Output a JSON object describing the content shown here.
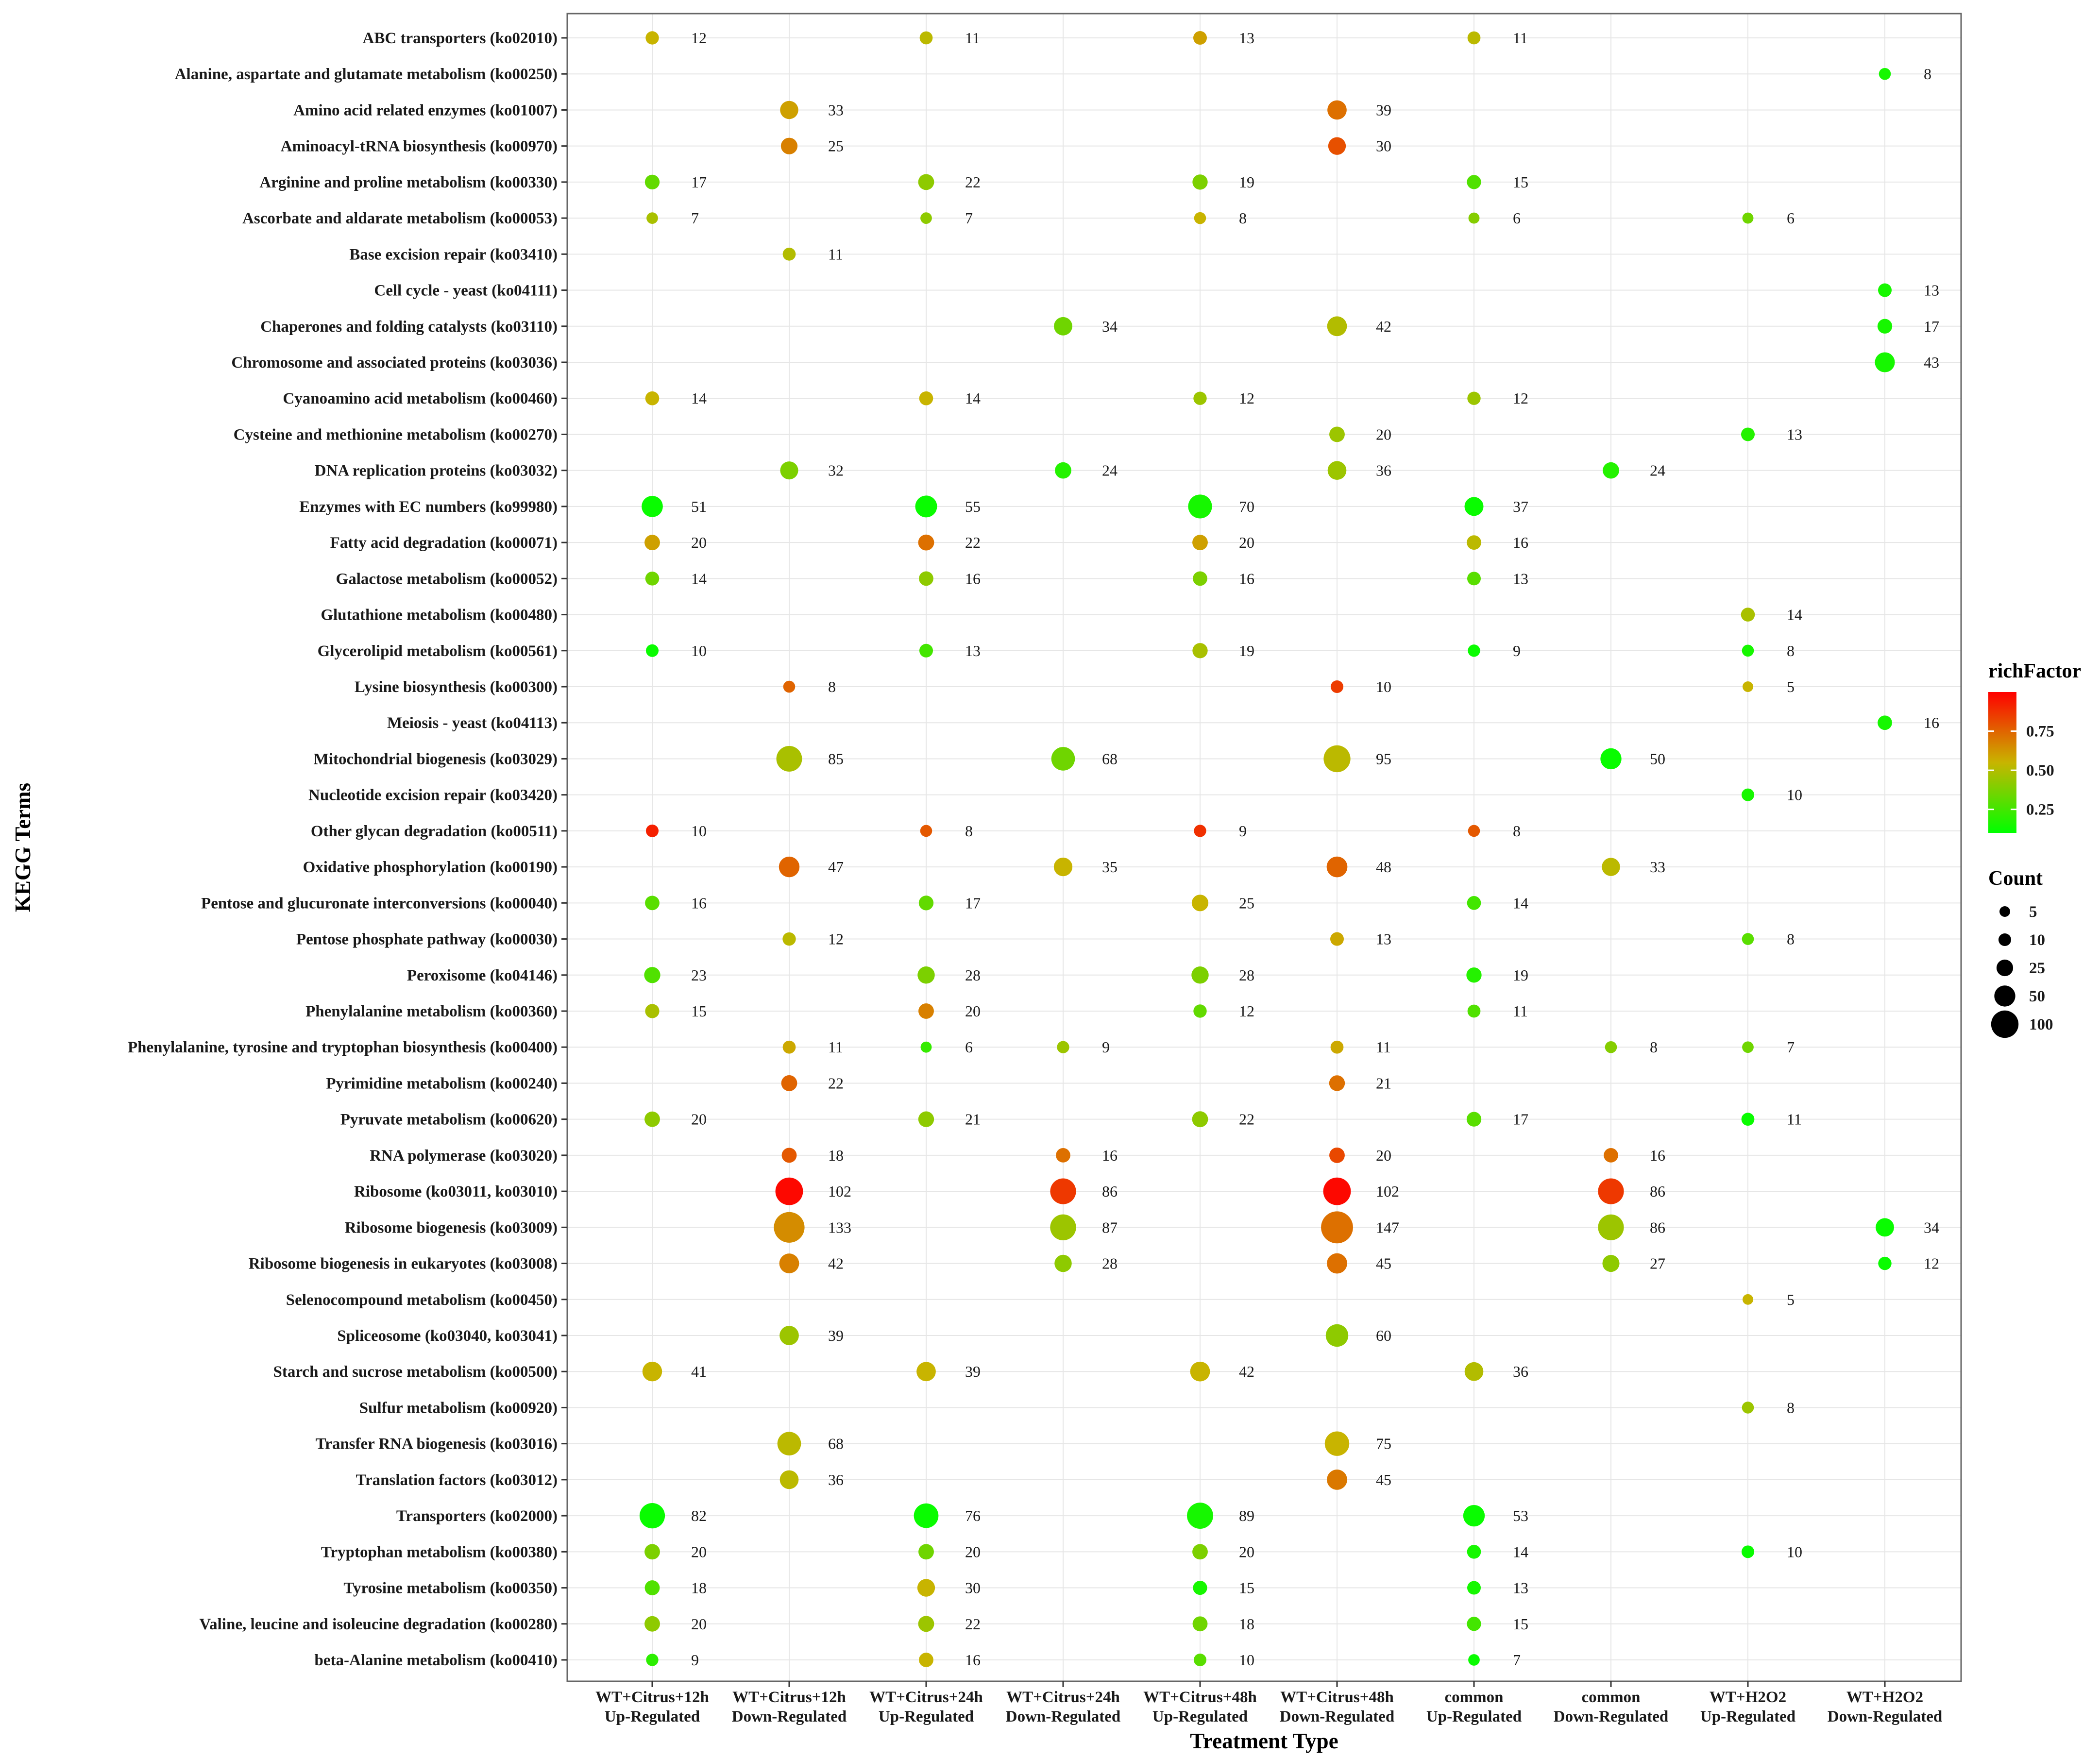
{
  "chart_data": {
    "type": "scatter",
    "subtype": "bubble",
    "xlabel": "Treatment Type",
    "ylabel": "KEGG Terms",
    "x_categories": [
      [
        "WT+Citrus+12h",
        "Up-Regulated"
      ],
      [
        "WT+Citrus+12h",
        "Down-Regulated"
      ],
      [
        "WT+Citrus+24h",
        "Up-Regulated"
      ],
      [
        "WT+Citrus+24h",
        "Down-Regulated"
      ],
      [
        "WT+Citrus+48h",
        "Up-Regulated"
      ],
      [
        "WT+Citrus+48h",
        "Down-Regulated"
      ],
      [
        "common",
        "Up-Regulated"
      ],
      [
        "common",
        "Down-Regulated"
      ],
      [
        "WT+H2O2",
        "Up-Regulated"
      ],
      [
        "WT+H2O2",
        "Down-Regulated"
      ]
    ],
    "terms": [
      "ABC transporters (ko02010)",
      "Alanine, aspartate and glutamate metabolism (ko00250)",
      "Amino acid related enzymes (ko01007)",
      "Aminoacyl-tRNA biosynthesis (ko00970)",
      "Arginine and proline metabolism (ko00330)",
      "Ascorbate and aldarate metabolism (ko00053)",
      "Base excision repair (ko03410)",
      "Cell cycle - yeast (ko04111)",
      "Chaperones and folding catalysts (ko03110)",
      "Chromosome and associated proteins (ko03036)",
      "Cyanoamino acid metabolism (ko00460)",
      "Cysteine and methionine metabolism (ko00270)",
      "DNA replication proteins (ko03032)",
      "Enzymes with EC numbers (ko99980)",
      "Fatty acid degradation (ko00071)",
      "Galactose metabolism (ko00052)",
      "Glutathione metabolism (ko00480)",
      "Glycerolipid metabolism (ko00561)",
      "Lysine biosynthesis (ko00300)",
      "Meiosis - yeast (ko04113)",
      "Mitochondrial biogenesis (ko03029)",
      "Nucleotide excision repair (ko03420)",
      "Other glycan degradation (ko00511)",
      "Oxidative phosphorylation (ko00190)",
      "Pentose and glucuronate interconversions (ko00040)",
      "Pentose phosphate pathway (ko00030)",
      "Peroxisome (ko04146)",
      "Phenylalanine metabolism (ko00360)",
      "Phenylalanine, tyrosine and tryptophan biosynthesis (ko00400)",
      "Pyrimidine metabolism (ko00240)",
      "Pyruvate metabolism (ko00620)",
      "RNA polymerase (ko03020)",
      "Ribosome (ko03011, ko03010)",
      "Ribosome biogenesis (ko03009)",
      "Ribosome biogenesis in eukaryotes (ko03008)",
      "Selenocompound metabolism (ko00450)",
      "Spliceosome (ko03040, ko03041)",
      "Starch and sucrose metabolism (ko00500)",
      "Sulfur metabolism (ko00920)",
      "Transfer RNA biogenesis (ko03016)",
      "Translation factors (ko03012)",
      "Transporters (ko02000)",
      "Tryptophan metabolism (ko00380)",
      "Tyrosine metabolism (ko00350)",
      "Valine, leucine and isoleucine degradation (ko00280)",
      "beta-Alanine metabolism (ko00410)"
    ],
    "points": [
      {
        "term": 0,
        "col": 0,
        "count": 12,
        "richFactor": 0.55
      },
      {
        "term": 0,
        "col": 2,
        "count": 11,
        "richFactor": 0.52
      },
      {
        "term": 0,
        "col": 4,
        "count": 13,
        "richFactor": 0.6
      },
      {
        "term": 0,
        "col": 6,
        "count": 11,
        "richFactor": 0.52
      },
      {
        "term": 1,
        "col": 9,
        "count": 8,
        "richFactor": 0.15
      },
      {
        "term": 2,
        "col": 1,
        "count": 33,
        "richFactor": 0.6
      },
      {
        "term": 2,
        "col": 5,
        "count": 39,
        "richFactor": 0.72
      },
      {
        "term": 3,
        "col": 1,
        "count": 25,
        "richFactor": 0.68
      },
      {
        "term": 3,
        "col": 5,
        "count": 30,
        "richFactor": 0.8
      },
      {
        "term": 4,
        "col": 0,
        "count": 17,
        "richFactor": 0.32
      },
      {
        "term": 4,
        "col": 2,
        "count": 22,
        "richFactor": 0.42
      },
      {
        "term": 4,
        "col": 4,
        "count": 19,
        "richFactor": 0.38
      },
      {
        "term": 4,
        "col": 6,
        "count": 15,
        "richFactor": 0.28
      },
      {
        "term": 5,
        "col": 0,
        "count": 7,
        "richFactor": 0.48
      },
      {
        "term": 5,
        "col": 2,
        "count": 7,
        "richFactor": 0.42
      },
      {
        "term": 5,
        "col": 4,
        "count": 8,
        "richFactor": 0.55
      },
      {
        "term": 5,
        "col": 6,
        "count": 6,
        "richFactor": 0.4
      },
      {
        "term": 5,
        "col": 8,
        "count": 6,
        "richFactor": 0.35
      },
      {
        "term": 6,
        "col": 1,
        "count": 11,
        "richFactor": 0.5
      },
      {
        "term": 7,
        "col": 9,
        "count": 13,
        "richFactor": 0.15
      },
      {
        "term": 8,
        "col": 3,
        "count": 34,
        "richFactor": 0.35
      },
      {
        "term": 8,
        "col": 5,
        "count": 42,
        "richFactor": 0.5
      },
      {
        "term": 8,
        "col": 9,
        "count": 17,
        "richFactor": 0.15
      },
      {
        "term": 9,
        "col": 9,
        "count": 43,
        "richFactor": 0.15
      },
      {
        "term": 10,
        "col": 0,
        "count": 14,
        "richFactor": 0.55
      },
      {
        "term": 10,
        "col": 2,
        "count": 14,
        "richFactor": 0.55
      },
      {
        "term": 10,
        "col": 4,
        "count": 12,
        "richFactor": 0.45
      },
      {
        "term": 10,
        "col": 6,
        "count": 12,
        "richFactor": 0.45
      },
      {
        "term": 11,
        "col": 5,
        "count": 20,
        "richFactor": 0.45
      },
      {
        "term": 11,
        "col": 8,
        "count": 13,
        "richFactor": 0.18
      },
      {
        "term": 12,
        "col": 1,
        "count": 32,
        "richFactor": 0.38
      },
      {
        "term": 12,
        "col": 3,
        "count": 24,
        "richFactor": 0.18
      },
      {
        "term": 12,
        "col": 5,
        "count": 36,
        "richFactor": 0.45
      },
      {
        "term": 12,
        "col": 7,
        "count": 24,
        "richFactor": 0.18
      },
      {
        "term": 13,
        "col": 0,
        "count": 51,
        "richFactor": 0.12
      },
      {
        "term": 13,
        "col": 2,
        "count": 55,
        "richFactor": 0.12
      },
      {
        "term": 13,
        "col": 4,
        "count": 70,
        "richFactor": 0.15
      },
      {
        "term": 13,
        "col": 6,
        "count": 37,
        "richFactor": 0.12
      },
      {
        "term": 14,
        "col": 0,
        "count": 20,
        "richFactor": 0.6
      },
      {
        "term": 14,
        "col": 2,
        "count": 22,
        "richFactor": 0.72
      },
      {
        "term": 14,
        "col": 4,
        "count": 20,
        "richFactor": 0.6
      },
      {
        "term": 14,
        "col": 6,
        "count": 16,
        "richFactor": 0.52
      },
      {
        "term": 15,
        "col": 0,
        "count": 14,
        "richFactor": 0.35
      },
      {
        "term": 15,
        "col": 2,
        "count": 16,
        "richFactor": 0.42
      },
      {
        "term": 15,
        "col": 4,
        "count": 16,
        "richFactor": 0.38
      },
      {
        "term": 15,
        "col": 6,
        "count": 13,
        "richFactor": 0.3
      },
      {
        "term": 16,
        "col": 8,
        "count": 14,
        "richFactor": 0.48
      },
      {
        "term": 17,
        "col": 0,
        "count": 10,
        "richFactor": 0.12
      },
      {
        "term": 17,
        "col": 2,
        "count": 13,
        "richFactor": 0.25
      },
      {
        "term": 17,
        "col": 4,
        "count": 19,
        "richFactor": 0.48
      },
      {
        "term": 17,
        "col": 6,
        "count": 9,
        "richFactor": 0.12
      },
      {
        "term": 17,
        "col": 8,
        "count": 8,
        "richFactor": 0.15
      },
      {
        "term": 18,
        "col": 1,
        "count": 8,
        "richFactor": 0.75
      },
      {
        "term": 18,
        "col": 5,
        "count": 10,
        "richFactor": 0.85
      },
      {
        "term": 18,
        "col": 8,
        "count": 5,
        "richFactor": 0.55
      },
      {
        "term": 19,
        "col": 9,
        "count": 16,
        "richFactor": 0.15
      },
      {
        "term": 20,
        "col": 1,
        "count": 85,
        "richFactor": 0.48
      },
      {
        "term": 20,
        "col": 3,
        "count": 68,
        "richFactor": 0.35
      },
      {
        "term": 20,
        "col": 5,
        "count": 95,
        "richFactor": 0.52
      },
      {
        "term": 20,
        "col": 7,
        "count": 50,
        "richFactor": 0.12
      },
      {
        "term": 21,
        "col": 8,
        "count": 10,
        "richFactor": 0.15
      },
      {
        "term": 22,
        "col": 0,
        "count": 10,
        "richFactor": 0.92
      },
      {
        "term": 22,
        "col": 2,
        "count": 8,
        "richFactor": 0.78
      },
      {
        "term": 22,
        "col": 4,
        "count": 9,
        "richFactor": 0.88
      },
      {
        "term": 22,
        "col": 6,
        "count": 8,
        "richFactor": 0.78
      },
      {
        "term": 23,
        "col": 1,
        "count": 47,
        "richFactor": 0.75
      },
      {
        "term": 23,
        "col": 3,
        "count": 35,
        "richFactor": 0.55
      },
      {
        "term": 23,
        "col": 5,
        "count": 48,
        "richFactor": 0.75
      },
      {
        "term": 23,
        "col": 7,
        "count": 33,
        "richFactor": 0.52
      },
      {
        "term": 24,
        "col": 0,
        "count": 16,
        "richFactor": 0.3
      },
      {
        "term": 24,
        "col": 2,
        "count": 17,
        "richFactor": 0.32
      },
      {
        "term": 24,
        "col": 4,
        "count": 25,
        "richFactor": 0.55
      },
      {
        "term": 24,
        "col": 6,
        "count": 14,
        "richFactor": 0.25
      },
      {
        "term": 25,
        "col": 1,
        "count": 12,
        "richFactor": 0.52
      },
      {
        "term": 25,
        "col": 5,
        "count": 13,
        "richFactor": 0.58
      },
      {
        "term": 25,
        "col": 8,
        "count": 8,
        "richFactor": 0.3
      },
      {
        "term": 26,
        "col": 0,
        "count": 23,
        "richFactor": 0.28
      },
      {
        "term": 26,
        "col": 2,
        "count": 28,
        "richFactor": 0.38
      },
      {
        "term": 26,
        "col": 4,
        "count": 28,
        "richFactor": 0.38
      },
      {
        "term": 26,
        "col": 6,
        "count": 19,
        "richFactor": 0.18
      },
      {
        "term": 27,
        "col": 0,
        "count": 15,
        "richFactor": 0.48
      },
      {
        "term": 27,
        "col": 2,
        "count": 20,
        "richFactor": 0.68
      },
      {
        "term": 27,
        "col": 4,
        "count": 12,
        "richFactor": 0.32
      },
      {
        "term": 27,
        "col": 6,
        "count": 11,
        "richFactor": 0.28
      },
      {
        "term": 28,
        "col": 1,
        "count": 11,
        "richFactor": 0.58
      },
      {
        "term": 28,
        "col": 2,
        "count": 6,
        "richFactor": 0.22
      },
      {
        "term": 28,
        "col": 3,
        "count": 9,
        "richFactor": 0.45
      },
      {
        "term": 28,
        "col": 5,
        "count": 11,
        "richFactor": 0.58
      },
      {
        "term": 28,
        "col": 7,
        "count": 8,
        "richFactor": 0.4
      },
      {
        "term": 28,
        "col": 8,
        "count": 7,
        "richFactor": 0.35
      },
      {
        "term": 29,
        "col": 1,
        "count": 22,
        "richFactor": 0.75
      },
      {
        "term": 29,
        "col": 5,
        "count": 21,
        "richFactor": 0.72
      },
      {
        "term": 30,
        "col": 0,
        "count": 20,
        "richFactor": 0.42
      },
      {
        "term": 30,
        "col": 2,
        "count": 21,
        "richFactor": 0.42
      },
      {
        "term": 30,
        "col": 4,
        "count": 22,
        "richFactor": 0.42
      },
      {
        "term": 30,
        "col": 6,
        "count": 17,
        "richFactor": 0.3
      },
      {
        "term": 30,
        "col": 8,
        "count": 11,
        "richFactor": 0.12
      },
      {
        "term": 31,
        "col": 1,
        "count": 18,
        "richFactor": 0.78
      },
      {
        "term": 31,
        "col": 3,
        "count": 16,
        "richFactor": 0.72
      },
      {
        "term": 31,
        "col": 5,
        "count": 20,
        "richFactor": 0.82
      },
      {
        "term": 31,
        "col": 7,
        "count": 16,
        "richFactor": 0.72
      },
      {
        "term": 32,
        "col": 1,
        "count": 102,
        "richFactor": 0.98
      },
      {
        "term": 32,
        "col": 3,
        "count": 86,
        "richFactor": 0.86
      },
      {
        "term": 32,
        "col": 5,
        "count": 102,
        "richFactor": 0.98
      },
      {
        "term": 32,
        "col": 7,
        "count": 86,
        "richFactor": 0.86
      },
      {
        "term": 33,
        "col": 1,
        "count": 133,
        "richFactor": 0.65
      },
      {
        "term": 33,
        "col": 3,
        "count": 87,
        "richFactor": 0.45
      },
      {
        "term": 33,
        "col": 5,
        "count": 147,
        "richFactor": 0.72
      },
      {
        "term": 33,
        "col": 7,
        "count": 86,
        "richFactor": 0.45
      },
      {
        "term": 33,
        "col": 9,
        "count": 34,
        "richFactor": 0.12
      },
      {
        "term": 34,
        "col": 1,
        "count": 42,
        "richFactor": 0.68
      },
      {
        "term": 34,
        "col": 3,
        "count": 28,
        "richFactor": 0.42
      },
      {
        "term": 34,
        "col": 5,
        "count": 45,
        "richFactor": 0.72
      },
      {
        "term": 34,
        "col": 7,
        "count": 27,
        "richFactor": 0.42
      },
      {
        "term": 34,
        "col": 9,
        "count": 12,
        "richFactor": 0.12
      },
      {
        "term": 35,
        "col": 8,
        "count": 5,
        "richFactor": 0.55
      },
      {
        "term": 36,
        "col": 1,
        "count": 39,
        "richFactor": 0.45
      },
      {
        "term": 36,
        "col": 5,
        "count": 60,
        "richFactor": 0.42
      },
      {
        "term": 37,
        "col": 0,
        "count": 41,
        "richFactor": 0.55
      },
      {
        "term": 37,
        "col": 2,
        "count": 39,
        "richFactor": 0.55
      },
      {
        "term": 37,
        "col": 4,
        "count": 42,
        "richFactor": 0.55
      },
      {
        "term": 37,
        "col": 6,
        "count": 36,
        "richFactor": 0.5
      },
      {
        "term": 38,
        "col": 8,
        "count": 8,
        "richFactor": 0.45
      },
      {
        "term": 39,
        "col": 1,
        "count": 68,
        "richFactor": 0.52
      },
      {
        "term": 39,
        "col": 5,
        "count": 75,
        "richFactor": 0.55
      },
      {
        "term": 40,
        "col": 1,
        "count": 36,
        "richFactor": 0.52
      },
      {
        "term": 40,
        "col": 5,
        "count": 45,
        "richFactor": 0.7
      },
      {
        "term": 41,
        "col": 0,
        "count": 82,
        "richFactor": 0.12
      },
      {
        "term": 41,
        "col": 2,
        "count": 76,
        "richFactor": 0.12
      },
      {
        "term": 41,
        "col": 4,
        "count": 89,
        "richFactor": 0.15
      },
      {
        "term": 41,
        "col": 6,
        "count": 53,
        "richFactor": 0.12
      },
      {
        "term": 42,
        "col": 0,
        "count": 20,
        "richFactor": 0.38
      },
      {
        "term": 42,
        "col": 2,
        "count": 20,
        "richFactor": 0.35
      },
      {
        "term": 42,
        "col": 4,
        "count": 20,
        "richFactor": 0.38
      },
      {
        "term": 42,
        "col": 6,
        "count": 14,
        "richFactor": 0.15
      },
      {
        "term": 42,
        "col": 8,
        "count": 10,
        "richFactor": 0.12
      },
      {
        "term": 43,
        "col": 0,
        "count": 18,
        "richFactor": 0.28
      },
      {
        "term": 43,
        "col": 2,
        "count": 30,
        "richFactor": 0.55
      },
      {
        "term": 43,
        "col": 4,
        "count": 15,
        "richFactor": 0.15
      },
      {
        "term": 43,
        "col": 6,
        "count": 13,
        "richFactor": 0.15
      },
      {
        "term": 44,
        "col": 0,
        "count": 20,
        "richFactor": 0.42
      },
      {
        "term": 44,
        "col": 2,
        "count": 22,
        "richFactor": 0.45
      },
      {
        "term": 44,
        "col": 4,
        "count": 18,
        "richFactor": 0.35
      },
      {
        "term": 44,
        "col": 6,
        "count": 15,
        "richFactor": 0.25
      },
      {
        "term": 45,
        "col": 0,
        "count": 9,
        "richFactor": 0.2
      },
      {
        "term": 45,
        "col": 2,
        "count": 16,
        "richFactor": 0.55
      },
      {
        "term": 45,
        "col": 4,
        "count": 10,
        "richFactor": 0.3
      },
      {
        "term": 45,
        "col": 6,
        "count": 7,
        "richFactor": 0.12
      }
    ],
    "legend": {
      "placement": "right",
      "color": {
        "title": "richFactor",
        "ticks": [
          0.25,
          0.5,
          0.75
        ],
        "tick_labels": [
          "0.25",
          "0.50",
          "0.75"
        ],
        "range": [
          0.1,
          1.0
        ],
        "low_color": "#00ff00",
        "mid_color": "#c8b400",
        "high_color": "#ff0000"
      },
      "size": {
        "title": "Count",
        "values": [
          5,
          10,
          25,
          50,
          100
        ],
        "labels": [
          "5",
          "10",
          "25",
          "50",
          "100"
        ]
      }
    },
    "grid": true,
    "gridline_color": "#e6e6e6",
    "panel_border_color": "#666666"
  }
}
